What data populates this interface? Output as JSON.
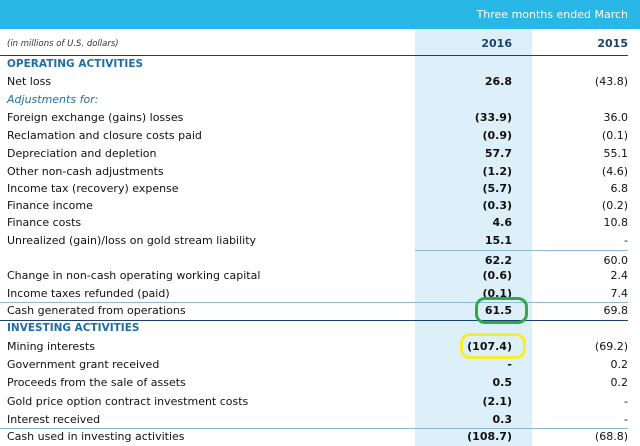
{
  "table": {
    "period_header": "Three months ended March",
    "units_note": "(in millions of U.S. dollars)",
    "year_current": "2016",
    "year_prior": "2015",
    "colors": {
      "header_bar": "#29b7e5",
      "highlight_column": "#ddf0f9",
      "section_heading": "#1e6ea6",
      "green_circle": "#2fa94a",
      "yellow_circle": "#f6ee2a"
    },
    "rows": [
      {
        "label": "OPERATING ACTIVITIES",
        "v2016": "",
        "v2015": ""
      },
      {
        "label": "Net loss",
        "v2016": "26.8",
        "v2015": "(43.8)"
      },
      {
        "label": "Adjustments for:",
        "v2016": "",
        "v2015": ""
      },
      {
        "label": "Foreign exchange (gains) losses",
        "v2016": "(33.9)",
        "v2015": "36.0"
      },
      {
        "label": "Reclamation and closure costs paid",
        "v2016": "(0.9)",
        "v2015": "(0.1)"
      },
      {
        "label": "Depreciation and depletion",
        "v2016": "57.7",
        "v2015": "55.1"
      },
      {
        "label": "Other non-cash adjustments",
        "v2016": "(1.2)",
        "v2015": "(4.6)"
      },
      {
        "label": "Income tax (recovery) expense",
        "v2016": "(5.7)",
        "v2015": "6.8"
      },
      {
        "label": "Finance income",
        "v2016": "(0.3)",
        "v2015": "(0.2)"
      },
      {
        "label": "Finance costs",
        "v2016": "4.6",
        "v2015": "10.8"
      },
      {
        "label": "Unrealized (gain)/loss on gold stream liability",
        "v2016": "15.1",
        "v2015": "-"
      },
      {
        "label": "",
        "v2016": "62.2",
        "v2015": "60.0"
      },
      {
        "label": "Change in non-cash operating working capital",
        "v2016": "(0.6)",
        "v2015": "2.4"
      },
      {
        "label": "Income taxes refunded (paid)",
        "v2016": "(0.1)",
        "v2015": "7.4"
      },
      {
        "label": "Cash generated from operations",
        "v2016": "61.5",
        "v2015": "69.8"
      },
      {
        "label": "INVESTING ACTIVITIES",
        "v2016": "",
        "v2015": ""
      },
      {
        "label": "Mining interests",
        "v2016": "(107.4)",
        "v2015": "(69.2)"
      },
      {
        "label": "Government grant received",
        "v2016": "-",
        "v2015": "0.2"
      },
      {
        "label": "Proceeds from the sale of assets",
        "v2016": "0.5",
        "v2015": "0.2"
      },
      {
        "label": "Gold price option contract investment costs",
        "v2016": "(2.1)",
        "v2015": "-"
      },
      {
        "label": "Interest received",
        "v2016": "0.3",
        "v2015": "-"
      },
      {
        "label": "Cash used in investing activities",
        "v2016": "(108.7)",
        "v2015": "(68.8)"
      }
    ]
  }
}
